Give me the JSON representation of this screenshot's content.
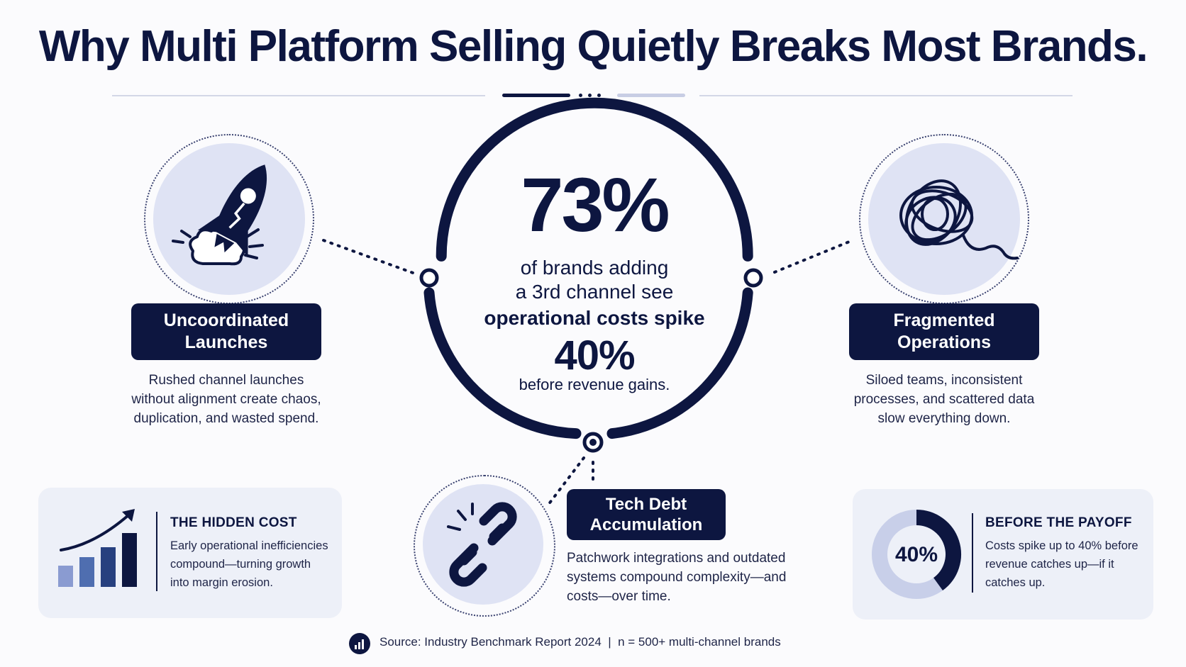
{
  "title": "Why Multi Platform Selling Quietly Breaks Most Brands.",
  "center": {
    "big_stat": "73%",
    "line1": "of brands adding",
    "line2": "a 3rd channel see",
    "line3": "operational costs spike",
    "stat2": "40%",
    "line4": "before revenue gains."
  },
  "left_feature": {
    "icon": "rocket-icon",
    "title_line1": "Uncoordinated",
    "title_line2": "Launches",
    "desc_line1": "Rushed channel launches",
    "desc_line2": "without alignment create chaos,",
    "desc_line3": "duplication, and wasted spend."
  },
  "right_feature": {
    "icon": "tangle-icon",
    "title_line1": "Fragmented",
    "title_line2": "Operations",
    "desc_line1": "Siloed teams, inconsistent",
    "desc_line2": "processes, and scattered data",
    "desc_line3": "slow everything down."
  },
  "bottom_feature": {
    "icon": "broken-chain-icon",
    "title_line1": "Tech Debt",
    "title_line2": "Accumulation",
    "desc_line1": "Patchwork integrations and outdated",
    "desc_line2": "systems compound complexity—and",
    "desc_line3": "costs—over time."
  },
  "hidden_cost": {
    "icon": "growth-bar-chart-icon",
    "title": "THE HIDDEN COST",
    "line1": "Early operational inefficiencies",
    "line2": "compound—turning growth",
    "line3": "into margin erosion."
  },
  "payoff": {
    "title": "BEFORE THE PAYOFF",
    "donut_label": "40%",
    "donut_fraction": 0.4,
    "line1": "Costs spike up to 40% before",
    "line2": "revenue catches up—if it",
    "line3": "catches up."
  },
  "source": "Source: Industry Benchmark Report 2024  |  n = 500+ multi-channel brands",
  "colors": {
    "navy": "#0d1640",
    "light": "#dfe3f4",
    "mid": "#8a9bd1",
    "card": "#edf0f8"
  }
}
